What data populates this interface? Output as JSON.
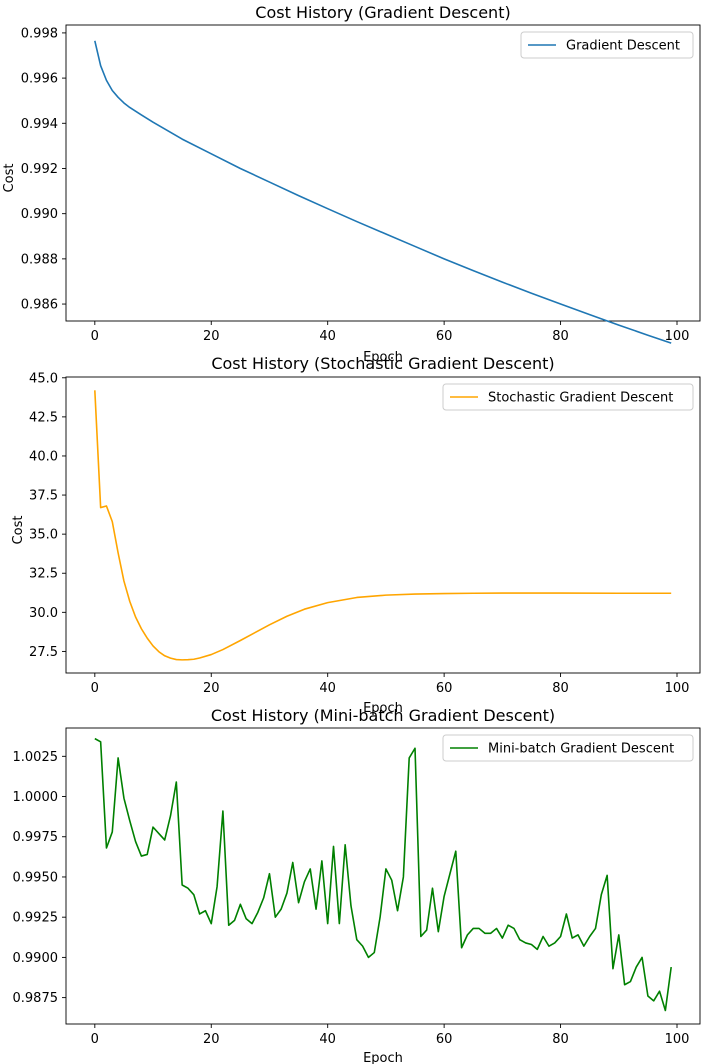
{
  "chart_data": [
    {
      "type": "line",
      "title": "Cost History (Gradient Descent)",
      "xlabel": "Epoch",
      "ylabel": "Cost",
      "xlim": [
        -4.95,
        103.95
      ],
      "ylim": [
        0.98525,
        0.99835
      ],
      "xticks": [
        0,
        20,
        40,
        60,
        80,
        100
      ],
      "xtick_labels": [
        "0",
        "20",
        "40",
        "60",
        "80",
        "100"
      ],
      "yticks": [
        0.986,
        0.988,
        0.99,
        0.992,
        0.994,
        0.996,
        0.998
      ],
      "ytick_labels": [
        "0.986",
        "0.988",
        "0.990",
        "0.992",
        "0.994",
        "0.996",
        "0.998"
      ],
      "grid": false,
      "legend_position": "upper right",
      "series": [
        {
          "name": "Gradient Descent",
          "color": "#1f77b4",
          "x": [
            0,
            1,
            2,
            3,
            4,
            5,
            6,
            8,
            10,
            12,
            15,
            20,
            25,
            30,
            35,
            40,
            45,
            50,
            55,
            60,
            65,
            70,
            75,
            80,
            85,
            90,
            95,
            99
          ],
          "y": [
            0.99765,
            0.99655,
            0.9959,
            0.99545,
            0.99515,
            0.9949,
            0.9947,
            0.99437,
            0.99405,
            0.99375,
            0.9933,
            0.99265,
            0.992,
            0.9914,
            0.9908,
            0.99022,
            0.98965,
            0.9891,
            0.98855,
            0.988,
            0.98748,
            0.98697,
            0.98648,
            0.986,
            0.98553,
            0.98507,
            0.98462,
            0.98427
          ]
        }
      ]
    },
    {
      "type": "line",
      "title": "Cost History (Stochastic Gradient Descent)",
      "xlabel": "Epoch",
      "ylabel": "Cost",
      "xlim": [
        -4.95,
        103.95
      ],
      "ylim": [
        26.12,
        45.05
      ],
      "xticks": [
        0,
        20,
        40,
        60,
        80,
        100
      ],
      "xtick_labels": [
        "0",
        "20",
        "40",
        "60",
        "80",
        "100"
      ],
      "yticks": [
        27.5,
        30.0,
        32.5,
        35.0,
        37.5,
        40.0,
        42.5,
        45.0
      ],
      "ytick_labels": [
        "27.5",
        "30.0",
        "32.5",
        "35.0",
        "37.5",
        "40.0",
        "42.5",
        "45.0"
      ],
      "grid": false,
      "legend_position": "upper right",
      "series": [
        {
          "name": "Stochastic Gradient Descent",
          "color": "#ffa500",
          "x": [
            0,
            1,
            2,
            3,
            4,
            5,
            6,
            7,
            8,
            9,
            10,
            11,
            12,
            13,
            14,
            15,
            16,
            17,
            18,
            20,
            22,
            25,
            28,
            30,
            33,
            36,
            40,
            45,
            50,
            55,
            60,
            65,
            70,
            80,
            90,
            99
          ],
          "y": [
            44.2,
            36.7,
            36.8,
            35.8,
            33.8,
            32.0,
            30.7,
            29.7,
            28.95,
            28.35,
            27.85,
            27.48,
            27.22,
            27.07,
            26.98,
            26.96,
            26.97,
            27.0,
            27.08,
            27.3,
            27.62,
            28.2,
            28.8,
            29.2,
            29.75,
            30.2,
            30.62,
            30.95,
            31.1,
            31.17,
            31.2,
            31.22,
            31.23,
            31.23,
            31.22,
            31.22
          ]
        }
      ]
    },
    {
      "type": "line",
      "title": "Cost History (Mini-batch Gradient Descent)",
      "xlabel": "Epoch",
      "ylabel": "",
      "xlim": [
        -4.95,
        103.95
      ],
      "ylim": [
        0.98586,
        1.00426
      ],
      "xticks": [
        0,
        20,
        40,
        60,
        80,
        100
      ],
      "xtick_labels": [
        "0",
        "20",
        "40",
        "60",
        "80",
        "100"
      ],
      "yticks": [
        0.9875,
        0.99,
        0.9925,
        0.995,
        0.9975,
        1.0,
        1.0025
      ],
      "ytick_labels": [
        "0.9875",
        "0.9900",
        "0.9925",
        "0.9950",
        "0.9975",
        "1.0000",
        "1.0025"
      ],
      "grid": false,
      "legend_position": "upper right",
      "series": [
        {
          "name": "Mini-batch Gradient Descent",
          "color": "#008000",
          "x": [
            0,
            1,
            2,
            3,
            4,
            5,
            6,
            7,
            8,
            9,
            10,
            11,
            12,
            13,
            14,
            15,
            16,
            17,
            18,
            19,
            20,
            21,
            22,
            23,
            24,
            25,
            26,
            27,
            28,
            29,
            30,
            31,
            32,
            33,
            34,
            35,
            36,
            37,
            38,
            39,
            40,
            41,
            42,
            43,
            44,
            45,
            46,
            47,
            48,
            49,
            50,
            51,
            52,
            53,
            54,
            55,
            56,
            57,
            58,
            59,
            60,
            61,
            62,
            63,
            64,
            65,
            66,
            67,
            68,
            69,
            70,
            71,
            72,
            73,
            74,
            75,
            76,
            77,
            78,
            79,
            80,
            81,
            82,
            83,
            84,
            85,
            86,
            87,
            88,
            89,
            90,
            91,
            92,
            93,
            94,
            95,
            96,
            97,
            98,
            99
          ],
          "y": [
            1.0036,
            1.0034,
            0.9968,
            0.9978,
            1.0024,
            0.9999,
            0.9985,
            0.9972,
            0.9963,
            0.9964,
            0.9981,
            0.9977,
            0.9973,
            0.9988,
            1.0009,
            0.9945,
            0.9943,
            0.9939,
            0.9927,
            0.9929,
            0.9921,
            0.9944,
            0.9991,
            0.992,
            0.9923,
            0.9933,
            0.9924,
            0.9921,
            0.9928,
            0.9937,
            0.9952,
            0.9925,
            0.993,
            0.994,
            0.9959,
            0.9934,
            0.9947,
            0.9955,
            0.993,
            0.996,
            0.9921,
            0.9969,
            0.9921,
            0.997,
            0.9932,
            0.9911,
            0.9907,
            0.99,
            0.9903,
            0.9925,
            0.9955,
            0.9948,
            0.9929,
            0.995,
            1.0024,
            1.003,
            0.9913,
            0.9917,
            0.9943,
            0.9916,
            0.9938,
            0.9952,
            0.9966,
            0.9906,
            0.9914,
            0.9918,
            0.9918,
            0.9915,
            0.9915,
            0.9918,
            0.9912,
            0.992,
            0.9918,
            0.9911,
            0.9909,
            0.9908,
            0.9905,
            0.9913,
            0.9907,
            0.9909,
            0.9913,
            0.9927,
            0.9912,
            0.9914,
            0.9907,
            0.9913,
            0.9918,
            0.9939,
            0.9951,
            0.9893,
            0.9914,
            0.9883,
            0.9885,
            0.9894,
            0.99,
            0.9876,
            0.9873,
            0.9879,
            0.9867,
            0.9894
          ]
        }
      ]
    }
  ]
}
